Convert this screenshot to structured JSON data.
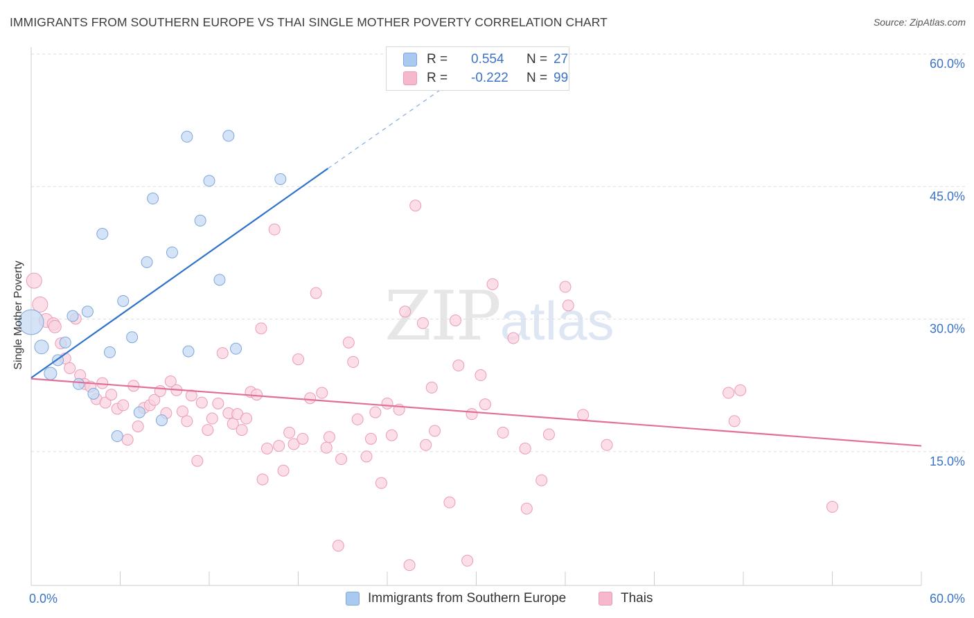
{
  "header": {
    "title": "IMMIGRANTS FROM SOUTHERN EUROPE VS THAI SINGLE MOTHER POVERTY CORRELATION CHART",
    "source": "Source: ZipAtlas.com"
  },
  "watermark": {
    "zip": "ZIP",
    "atlas": "atlas"
  },
  "legend": {
    "r_label": "R =",
    "n_label": "N =",
    "rows": [
      {
        "series": "Immigrants from Southern Europe",
        "r": "0.554",
        "n": "27",
        "color": "#aac8f0"
      },
      {
        "series": "Thais",
        "r": "-0.222",
        "n": "99",
        "color": "#f5b8cc"
      }
    ]
  },
  "colors": {
    "blue_fill": "#c5d9f3",
    "blue_stroke": "#7ca6dc",
    "blue_line": "#2f72cc",
    "pink_fill": "#f9d3df",
    "pink_stroke": "#ec9ab6",
    "pink_line": "#e36e99",
    "tick_label": "#3b73c6",
    "grid": "#dddddd"
  },
  "chart_data": {
    "type": "scatter",
    "title": "IMMIGRANTS FROM SOUTHERN EUROPE VS THAI SINGLE MOTHER POVERTY CORRELATION CHART",
    "xlabel": "",
    "ylabel": "Single Mother Poverty",
    "xlim": [
      0,
      60
    ],
    "ylim": [
      0,
      60
    ],
    "x_tick_labels": [
      "0.0%",
      "60.0%"
    ],
    "y_ticks": [
      15,
      30,
      45,
      60
    ],
    "y_tick_labels": [
      "15.0%",
      "30.0%",
      "45.0%",
      "60.0%"
    ],
    "grid": true,
    "legend_position": "top-center",
    "series": [
      {
        "name": "Immigrants from Southern Europe",
        "r": 0.554,
        "n": 27,
        "trend": {
          "x": [
            0.0,
            20.0
          ],
          "y": [
            23.5,
            47.2
          ],
          "dashed_to": [
            28.0,
            56.6
          ]
        },
        "points": [
          {
            "x": 0.0,
            "y": 29.8,
            "s": 18
          },
          {
            "x": 0.7,
            "y": 27.0,
            "s": 10
          },
          {
            "x": 1.3,
            "y": 24.0,
            "s": 9
          },
          {
            "x": 1.8,
            "y": 25.5,
            "s": 8
          },
          {
            "x": 2.3,
            "y": 27.5,
            "s": 8
          },
          {
            "x": 2.8,
            "y": 30.5,
            "s": 8
          },
          {
            "x": 3.2,
            "y": 22.8,
            "s": 8
          },
          {
            "x": 3.8,
            "y": 31.0,
            "s": 8
          },
          {
            "x": 4.2,
            "y": 21.7,
            "s": 8
          },
          {
            "x": 4.8,
            "y": 39.8,
            "s": 8
          },
          {
            "x": 5.3,
            "y": 26.4,
            "s": 8
          },
          {
            "x": 5.8,
            "y": 16.9,
            "s": 8
          },
          {
            "x": 6.2,
            "y": 32.2,
            "s": 8
          },
          {
            "x": 6.8,
            "y": 28.1,
            "s": 8
          },
          {
            "x": 7.3,
            "y": 19.6,
            "s": 8
          },
          {
            "x": 7.8,
            "y": 36.6,
            "s": 8
          },
          {
            "x": 8.2,
            "y": 43.8,
            "s": 8
          },
          {
            "x": 8.8,
            "y": 18.7,
            "s": 8
          },
          {
            "x": 9.5,
            "y": 37.7,
            "s": 8
          },
          {
            "x": 10.5,
            "y": 50.8,
            "s": 8
          },
          {
            "x": 10.6,
            "y": 26.5,
            "s": 8
          },
          {
            "x": 11.4,
            "y": 41.3,
            "s": 8
          },
          {
            "x": 12.0,
            "y": 45.8,
            "s": 8
          },
          {
            "x": 12.7,
            "y": 34.6,
            "s": 8
          },
          {
            "x": 13.3,
            "y": 50.9,
            "s": 8
          },
          {
            "x": 13.8,
            "y": 26.8,
            "s": 8
          },
          {
            "x": 16.8,
            "y": 46.0,
            "s": 8
          }
        ]
      },
      {
        "name": "Thais",
        "r": -0.222,
        "n": 99,
        "trend": {
          "x": [
            0.0,
            60.0
          ],
          "y": [
            23.4,
            15.8
          ]
        },
        "points": [
          {
            "x": 0.2,
            "y": 34.5,
            "s": 11
          },
          {
            "x": 0.6,
            "y": 31.8,
            "s": 11
          },
          {
            "x": 1.0,
            "y": 30.0,
            "s": 10
          },
          {
            "x": 1.5,
            "y": 29.6,
            "s": 9
          },
          {
            "x": 1.6,
            "y": 29.3,
            "s": 9
          },
          {
            "x": 2.0,
            "y": 27.4,
            "s": 8
          },
          {
            "x": 2.3,
            "y": 25.7,
            "s": 8
          },
          {
            "x": 2.6,
            "y": 24.6,
            "s": 8
          },
          {
            "x": 3.0,
            "y": 30.2,
            "s": 8
          },
          {
            "x": 3.3,
            "y": 23.8,
            "s": 8
          },
          {
            "x": 3.6,
            "y": 22.8,
            "s": 8
          },
          {
            "x": 4.0,
            "y": 22.5,
            "s": 8
          },
          {
            "x": 4.4,
            "y": 21.1,
            "s": 8
          },
          {
            "x": 4.8,
            "y": 22.9,
            "s": 8
          },
          {
            "x": 5.0,
            "y": 20.7,
            "s": 8
          },
          {
            "x": 5.4,
            "y": 21.6,
            "s": 8
          },
          {
            "x": 5.8,
            "y": 20.0,
            "s": 8
          },
          {
            "x": 6.2,
            "y": 20.4,
            "s": 8
          },
          {
            "x": 6.5,
            "y": 16.5,
            "s": 8
          },
          {
            "x": 6.9,
            "y": 22.6,
            "s": 8
          },
          {
            "x": 7.2,
            "y": 18.0,
            "s": 8
          },
          {
            "x": 7.6,
            "y": 20.1,
            "s": 8
          },
          {
            "x": 8.0,
            "y": 20.4,
            "s": 8
          },
          {
            "x": 8.3,
            "y": 21.0,
            "s": 8
          },
          {
            "x": 8.7,
            "y": 22.0,
            "s": 8
          },
          {
            "x": 9.1,
            "y": 19.5,
            "s": 8
          },
          {
            "x": 9.4,
            "y": 23.1,
            "s": 8
          },
          {
            "x": 9.8,
            "y": 22.1,
            "s": 8
          },
          {
            "x": 10.2,
            "y": 19.7,
            "s": 8
          },
          {
            "x": 10.5,
            "y": 18.6,
            "s": 8
          },
          {
            "x": 10.8,
            "y": 21.5,
            "s": 8
          },
          {
            "x": 11.2,
            "y": 14.1,
            "s": 8
          },
          {
            "x": 11.5,
            "y": 20.7,
            "s": 8
          },
          {
            "x": 11.9,
            "y": 17.6,
            "s": 8
          },
          {
            "x": 12.2,
            "y": 18.9,
            "s": 8
          },
          {
            "x": 12.6,
            "y": 20.6,
            "s": 8
          },
          {
            "x": 12.9,
            "y": 26.3,
            "s": 8
          },
          {
            "x": 13.3,
            "y": 19.5,
            "s": 8
          },
          {
            "x": 13.6,
            "y": 18.3,
            "s": 8
          },
          {
            "x": 13.9,
            "y": 19.4,
            "s": 8
          },
          {
            "x": 14.2,
            "y": 17.6,
            "s": 8
          },
          {
            "x": 14.5,
            "y": 18.9,
            "s": 8
          },
          {
            "x": 14.8,
            "y": 21.9,
            "s": 8
          },
          {
            "x": 15.2,
            "y": 21.6,
            "s": 8
          },
          {
            "x": 15.5,
            "y": 29.1,
            "s": 8
          },
          {
            "x": 15.6,
            "y": 12.0,
            "s": 8
          },
          {
            "x": 15.9,
            "y": 15.5,
            "s": 8
          },
          {
            "x": 16.4,
            "y": 40.3,
            "s": 8
          },
          {
            "x": 16.7,
            "y": 15.8,
            "s": 8
          },
          {
            "x": 17.0,
            "y": 13.0,
            "s": 8
          },
          {
            "x": 17.4,
            "y": 17.3,
            "s": 8
          },
          {
            "x": 17.7,
            "y": 16.0,
            "s": 8
          },
          {
            "x": 18.0,
            "y": 25.6,
            "s": 8
          },
          {
            "x": 18.3,
            "y": 16.6,
            "s": 8
          },
          {
            "x": 18.8,
            "y": 21.2,
            "s": 8
          },
          {
            "x": 19.2,
            "y": 33.1,
            "s": 8
          },
          {
            "x": 19.6,
            "y": 21.8,
            "s": 8
          },
          {
            "x": 19.9,
            "y": 15.6,
            "s": 8
          },
          {
            "x": 20.1,
            "y": 16.8,
            "s": 8
          },
          {
            "x": 20.7,
            "y": 4.5,
            "s": 8
          },
          {
            "x": 20.9,
            "y": 14.3,
            "s": 8
          },
          {
            "x": 21.4,
            "y": 27.5,
            "s": 8
          },
          {
            "x": 21.7,
            "y": 25.3,
            "s": 8
          },
          {
            "x": 22.0,
            "y": 18.8,
            "s": 8
          },
          {
            "x": 22.6,
            "y": 14.6,
            "s": 8
          },
          {
            "x": 22.9,
            "y": 16.6,
            "s": 8
          },
          {
            "x": 23.2,
            "y": 19.6,
            "s": 8
          },
          {
            "x": 23.6,
            "y": 11.6,
            "s": 8
          },
          {
            "x": 24.0,
            "y": 20.6,
            "s": 8
          },
          {
            "x": 24.3,
            "y": 17.0,
            "s": 8
          },
          {
            "x": 24.8,
            "y": 19.9,
            "s": 8
          },
          {
            "x": 25.2,
            "y": 31.0,
            "s": 8
          },
          {
            "x": 25.5,
            "y": 2.3,
            "s": 8
          },
          {
            "x": 25.9,
            "y": 43.0,
            "s": 8
          },
          {
            "x": 26.4,
            "y": 29.7,
            "s": 8
          },
          {
            "x": 26.6,
            "y": 15.9,
            "s": 8
          },
          {
            "x": 27.0,
            "y": 22.4,
            "s": 8
          },
          {
            "x": 27.2,
            "y": 17.5,
            "s": 8
          },
          {
            "x": 28.2,
            "y": 9.4,
            "s": 8
          },
          {
            "x": 28.6,
            "y": 30.0,
            "s": 8
          },
          {
            "x": 28.8,
            "y": 24.9,
            "s": 8
          },
          {
            "x": 29.4,
            "y": 2.8,
            "s": 8
          },
          {
            "x": 29.7,
            "y": 19.4,
            "s": 8
          },
          {
            "x": 30.3,
            "y": 23.8,
            "s": 8
          },
          {
            "x": 30.6,
            "y": 20.5,
            "s": 8
          },
          {
            "x": 31.1,
            "y": 34.1,
            "s": 8
          },
          {
            "x": 31.8,
            "y": 17.3,
            "s": 8
          },
          {
            "x": 32.5,
            "y": 28.0,
            "s": 8
          },
          {
            "x": 33.3,
            "y": 15.5,
            "s": 8
          },
          {
            "x": 33.4,
            "y": 8.7,
            "s": 8
          },
          {
            "x": 34.4,
            "y": 11.9,
            "s": 8
          },
          {
            "x": 34.9,
            "y": 17.1,
            "s": 8
          },
          {
            "x": 36.0,
            "y": 33.8,
            "s": 8
          },
          {
            "x": 36.2,
            "y": 31.7,
            "s": 8
          },
          {
            "x": 37.2,
            "y": 19.3,
            "s": 8
          },
          {
            "x": 38.8,
            "y": 15.9,
            "s": 8
          },
          {
            "x": 47.0,
            "y": 21.8,
            "s": 8
          },
          {
            "x": 47.4,
            "y": 18.6,
            "s": 8
          },
          {
            "x": 47.8,
            "y": 22.1,
            "s": 8
          },
          {
            "x": 54.0,
            "y": 8.9,
            "s": 8
          }
        ]
      }
    ]
  }
}
